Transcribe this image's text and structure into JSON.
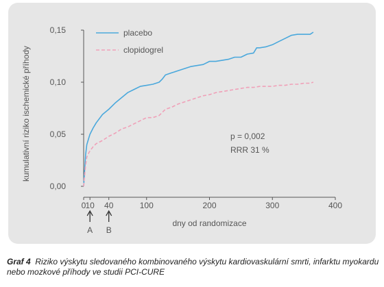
{
  "caption": {
    "number": "Graf 4",
    "text": "Riziko výskytu sledovaného kombinovaného výskytu kardiovaskulární smrti, infarktu myokardu nebo mozkové příhody ve studii PCI-CURE"
  },
  "colors": {
    "placebo": "#4aa8dc",
    "clopidogrel": "#f0a0b8",
    "background": "#e6e6e6",
    "axis": "#555555"
  },
  "chart_data": {
    "type": "line",
    "title": "",
    "xlabel": "dny od randomizace",
    "ylabel": "kumulativní riziko ischemické příhody",
    "xlim": [
      0,
      400
    ],
    "ylim": [
      0,
      0.15
    ],
    "x_ticks": [
      0,
      10,
      40,
      100,
      200,
      300,
      400
    ],
    "x_tick_labels": [
      "0",
      "10",
      "40",
      "100",
      "200",
      "300",
      "400"
    ],
    "y_ticks": [
      0,
      0.05,
      0.1,
      0.15
    ],
    "y_tick_labels": [
      "0,00",
      "0,05",
      "0,10",
      "0,15"
    ],
    "grid": false,
    "legend_position": "top-left",
    "annotations": [
      {
        "text": "p = 0,002"
      },
      {
        "text": "RRR 31 %"
      }
    ],
    "markers": [
      {
        "label": "A",
        "x": 10
      },
      {
        "label": "B",
        "x": 40
      }
    ],
    "series": [
      {
        "name": "placebo",
        "style": "solid",
        "x": [
          0,
          3,
          5,
          8,
          10,
          15,
          20,
          30,
          40,
          50,
          60,
          70,
          80,
          90,
          100,
          110,
          120,
          125,
          130,
          140,
          150,
          160,
          170,
          180,
          190,
          200,
          210,
          220,
          230,
          240,
          250,
          260,
          270,
          275,
          280,
          290,
          300,
          310,
          320,
          330,
          340,
          350,
          360,
          365
        ],
        "y": [
          0,
          0.03,
          0.04,
          0.046,
          0.05,
          0.056,
          0.061,
          0.069,
          0.074,
          0.08,
          0.085,
          0.09,
          0.093,
          0.096,
          0.097,
          0.098,
          0.1,
          0.103,
          0.107,
          0.109,
          0.111,
          0.113,
          0.115,
          0.116,
          0.117,
          0.12,
          0.12,
          0.121,
          0.122,
          0.124,
          0.124,
          0.127,
          0.128,
          0.133,
          0.133,
          0.134,
          0.136,
          0.139,
          0.142,
          0.145,
          0.146,
          0.146,
          0.146,
          0.148
        ]
      },
      {
        "name": "clopidogrel",
        "style": "dashed",
        "x": [
          0,
          3,
          5,
          8,
          10,
          15,
          20,
          30,
          40,
          50,
          60,
          70,
          80,
          90,
          100,
          110,
          120,
          125,
          130,
          140,
          150,
          160,
          170,
          180,
          190,
          200,
          210,
          220,
          230,
          240,
          250,
          260,
          270,
          280,
          290,
          300,
          310,
          320,
          330,
          340,
          350,
          360,
          365
        ],
        "y": [
          0,
          0.02,
          0.028,
          0.032,
          0.034,
          0.038,
          0.041,
          0.044,
          0.048,
          0.051,
          0.055,
          0.057,
          0.06,
          0.063,
          0.066,
          0.066,
          0.068,
          0.071,
          0.074,
          0.076,
          0.079,
          0.081,
          0.083,
          0.085,
          0.087,
          0.088,
          0.09,
          0.091,
          0.092,
          0.093,
          0.094,
          0.095,
          0.095,
          0.096,
          0.096,
          0.096,
          0.097,
          0.097,
          0.098,
          0.098,
          0.099,
          0.099,
          0.1
        ]
      }
    ]
  }
}
